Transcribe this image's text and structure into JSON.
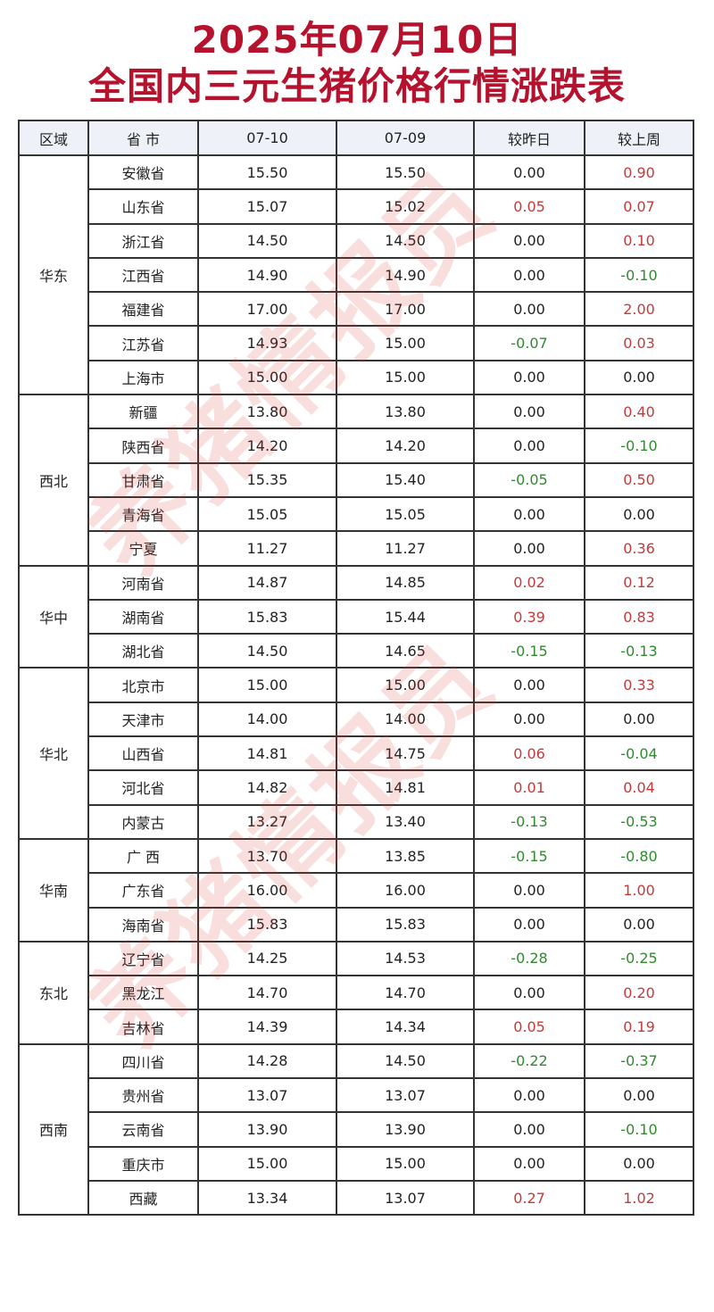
{
  "title": {
    "line1": "2025年07月10日",
    "line2": "全国内三元生猪价格行情涨跌表"
  },
  "watermark": "养猪情报员",
  "colors": {
    "title": "#b5122e",
    "up": "#c43a3a",
    "down": "#2f8a2f",
    "header_bg": "#eef2f8"
  },
  "table": {
    "headers": [
      "区域",
      "省 市",
      "07-10",
      "07-09",
      "较昨日",
      "较上周"
    ],
    "groups": [
      {
        "region": "华东",
        "rows": [
          [
            "安徽省",
            "15.50",
            "15.50",
            "0.00",
            "0.90"
          ],
          [
            "山东省",
            "15.07",
            "15.02",
            "0.05",
            "0.07"
          ],
          [
            "浙江省",
            "14.50",
            "14.50",
            "0.00",
            "0.10"
          ],
          [
            "江西省",
            "14.90",
            "14.90",
            "0.00",
            "-0.10"
          ],
          [
            "福建省",
            "17.00",
            "17.00",
            "0.00",
            "2.00"
          ],
          [
            "江苏省",
            "14.93",
            "15.00",
            "-0.07",
            "0.03"
          ],
          [
            "上海市",
            "15.00",
            "15.00",
            "0.00",
            "0.00"
          ]
        ]
      },
      {
        "region": "西北",
        "rows": [
          [
            "新疆",
            "13.80",
            "13.80",
            "0.00",
            "0.40"
          ],
          [
            "陕西省",
            "14.20",
            "14.20",
            "0.00",
            "-0.10"
          ],
          [
            "甘肃省",
            "15.35",
            "15.40",
            "-0.05",
            "0.50"
          ],
          [
            "青海省",
            "15.05",
            "15.05",
            "0.00",
            "0.00"
          ],
          [
            "宁夏",
            "11.27",
            "11.27",
            "0.00",
            "0.36"
          ]
        ]
      },
      {
        "region": "华中",
        "rows": [
          [
            "河南省",
            "14.87",
            "14.85",
            "0.02",
            "0.12"
          ],
          [
            "湖南省",
            "15.83",
            "15.44",
            "0.39",
            "0.83"
          ],
          [
            "湖北省",
            "14.50",
            "14.65",
            "-0.15",
            "-0.13"
          ]
        ]
      },
      {
        "region": "华北",
        "rows": [
          [
            "北京市",
            "15.00",
            "15.00",
            "0.00",
            "0.33"
          ],
          [
            "天津市",
            "14.00",
            "14.00",
            "0.00",
            "0.00"
          ],
          [
            "山西省",
            "14.81",
            "14.75",
            "0.06",
            "-0.04"
          ],
          [
            "河北省",
            "14.82",
            "14.81",
            "0.01",
            "0.04"
          ],
          [
            "内蒙古",
            "13.27",
            "13.40",
            "-0.13",
            "-0.53"
          ]
        ]
      },
      {
        "region": "华南",
        "rows": [
          [
            "广 西",
            "13.70",
            "13.85",
            "-0.15",
            "-0.80"
          ],
          [
            "广东省",
            "16.00",
            "16.00",
            "0.00",
            "1.00"
          ],
          [
            "海南省",
            "15.83",
            "15.83",
            "0.00",
            "0.00"
          ]
        ]
      },
      {
        "region": "东北",
        "rows": [
          [
            "辽宁省",
            "14.25",
            "14.53",
            "-0.28",
            "-0.25"
          ],
          [
            "黑龙江",
            "14.70",
            "14.70",
            "0.00",
            "0.20"
          ],
          [
            "吉林省",
            "14.39",
            "14.34",
            "0.05",
            "0.19"
          ]
        ]
      },
      {
        "region": "西南",
        "rows": [
          [
            "四川省",
            "14.28",
            "14.50",
            "-0.22",
            "-0.37"
          ],
          [
            "贵州省",
            "13.07",
            "13.07",
            "0.00",
            "0.00"
          ],
          [
            "云南省",
            "13.90",
            "13.90",
            "0.00",
            "-0.10"
          ],
          [
            "重庆市",
            "15.00",
            "15.00",
            "0.00",
            "0.00"
          ],
          [
            "西藏",
            "13.34",
            "13.07",
            "0.27",
            "1.02"
          ]
        ]
      }
    ]
  }
}
